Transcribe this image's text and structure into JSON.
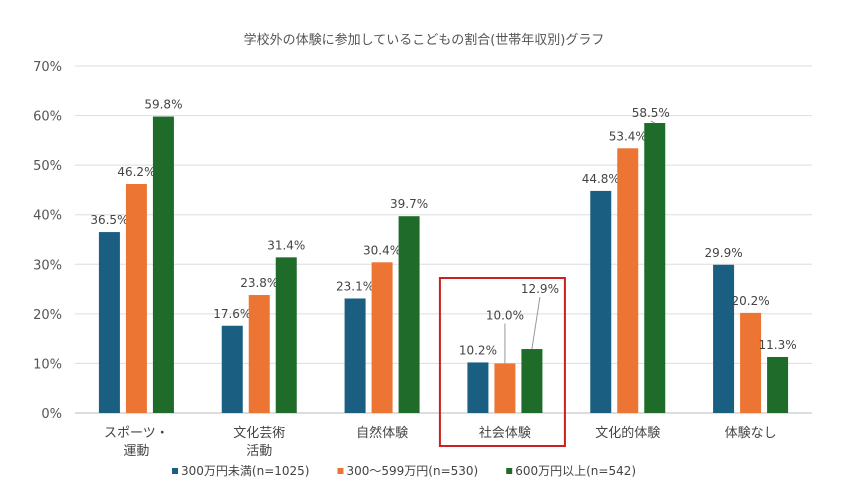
{
  "chart_data": {
    "type": "bar",
    "title": "学校外の体験に参加しているこどもの割合(世帯年収別)グラフ",
    "xlabel": "",
    "ylabel": "",
    "ylim": [
      0,
      70
    ],
    "yticks": [
      "0%",
      "10%",
      "20%",
      "30%",
      "40%",
      "50%",
      "60%",
      "70%"
    ],
    "grid": true,
    "legend_position": "bottom",
    "categories": [
      [
        "スポーツ・",
        "運動"
      ],
      [
        "文化芸術",
        "活動"
      ],
      [
        "自然体験"
      ],
      [
        "社会体験"
      ],
      [
        "文化的体験"
      ],
      [
        "体験なし"
      ]
    ],
    "highlighted_category": "社会体験",
    "series": [
      {
        "name": "300万円未満(n=1025)",
        "color": "#1a5e82",
        "values": [
          36.5,
          17.6,
          23.1,
          10.2,
          44.8,
          29.9
        ]
      },
      {
        "name": "300～599万円(n=530)",
        "color": "#ec7533",
        "values": [
          46.2,
          23.8,
          30.4,
          10.0,
          53.4,
          20.2
        ]
      },
      {
        "name": "600万円以上(n=542)",
        "color": "#1e6b2a",
        "values": [
          59.8,
          31.4,
          39.7,
          12.9,
          58.5,
          11.3
        ]
      }
    ],
    "highlight_color": "#cc1f1f"
  }
}
